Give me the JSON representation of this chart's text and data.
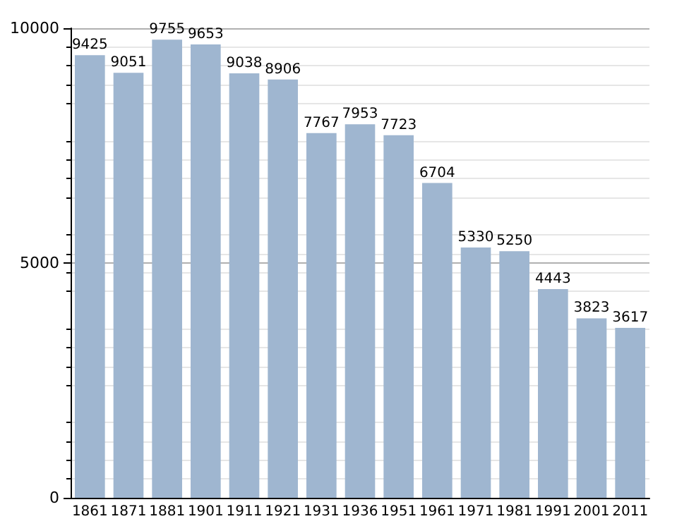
{
  "chart_data": {
    "type": "bar",
    "categories": [
      "1861",
      "1871",
      "1881",
      "1901",
      "1911",
      "1921",
      "1931",
      "1936",
      "1951",
      "1961",
      "1971",
      "1981",
      "1991",
      "2001",
      "2011"
    ],
    "values": [
      9425,
      9051,
      9755,
      9653,
      9038,
      8906,
      7767,
      7953,
      7723,
      6704,
      5330,
      5250,
      4443,
      3823,
      3617
    ],
    "color": "#9fb6d0",
    "ylim": [
      0,
      10000
    ],
    "yticks": [
      0,
      5000,
      10000
    ],
    "grid": "y",
    "data_labels": true
  }
}
